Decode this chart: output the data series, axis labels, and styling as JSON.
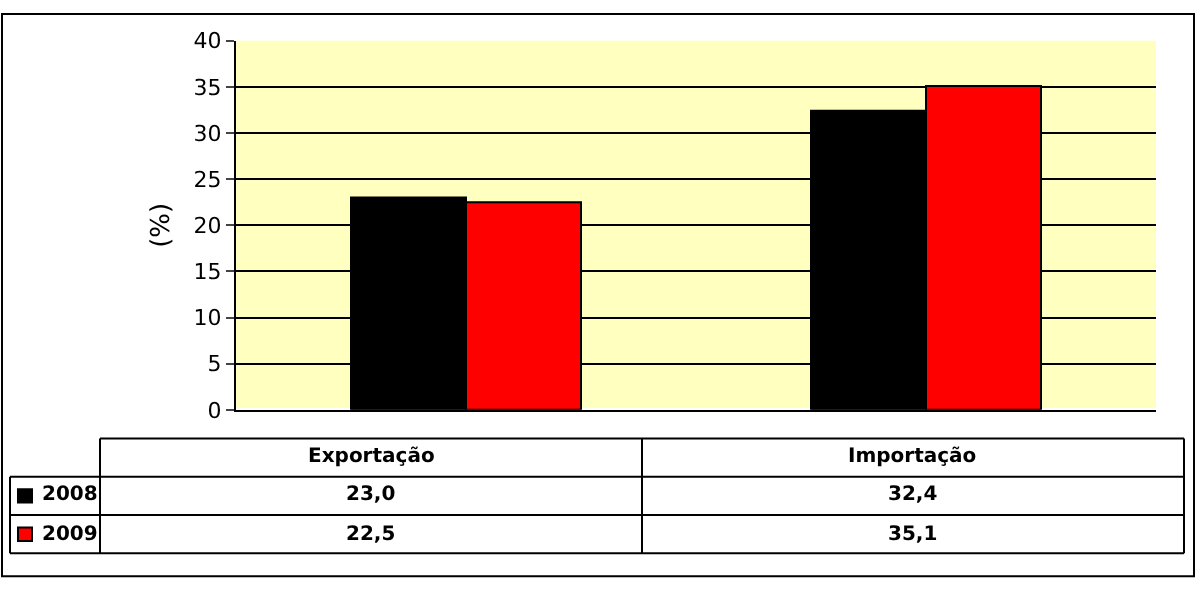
{
  "chart_data": {
    "type": "bar",
    "ylabel": "(%)",
    "categories": [
      "Exportação",
      "Importação"
    ],
    "series": [
      {
        "name": "2008",
        "color": "#000000",
        "values": [
          23.0,
          32.4
        ],
        "value_labels": [
          "23,0",
          "32,4"
        ]
      },
      {
        "name": "2009",
        "color": "#ff0000",
        "values": [
          22.5,
          35.1
        ],
        "value_labels": [
          "22,5",
          "35,1"
        ]
      }
    ],
    "ylim": [
      0,
      40
    ],
    "yticks": [
      0,
      5,
      10,
      15,
      20,
      25,
      30,
      35,
      40
    ],
    "grid": "y",
    "legend": "bottom left"
  }
}
